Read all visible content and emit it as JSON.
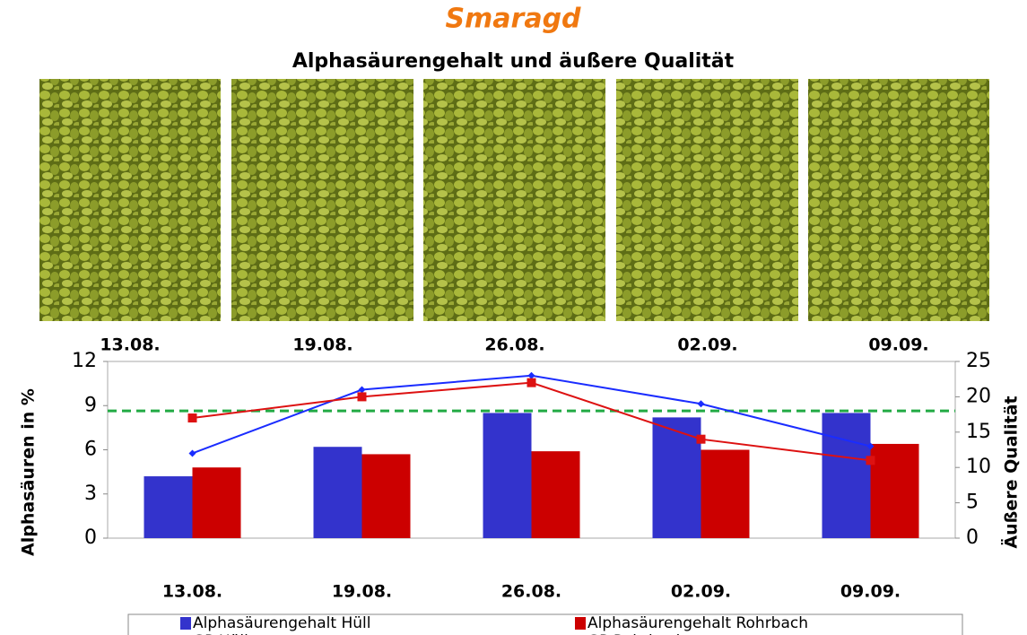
{
  "chart_data": {
    "type": "bar",
    "title": "Smaragd",
    "subtitle": "Alphasäurengehalt und äußere Qualität",
    "photo_labels": [
      "13.08.",
      "19.08.",
      "26.08.",
      "02.09.",
      "09.09."
    ],
    "categories": [
      "13.08.",
      "19.08.",
      "26.08.",
      "02.09.",
      "09.09."
    ],
    "y_label": "Alphasäuren in %",
    "y2_label": "Äußere Qualität",
    "ylim": [
      0,
      12
    ],
    "yticks": [
      0,
      3,
      6,
      9,
      12
    ],
    "y2lim": [
      0,
      25
    ],
    "y2ticks": [
      0,
      5,
      10,
      15,
      20,
      25
    ],
    "reference_line": {
      "value": 18,
      "axis": "y2",
      "color": "#22aa44"
    },
    "series": [
      {
        "name": "Alphasäurengehalt Hüll",
        "type": "bar",
        "color": "#3333cc",
        "values": [
          4.2,
          6.2,
          8.5,
          8.2,
          8.5
        ]
      },
      {
        "name": "Alphasäurengehalt Rohrbach",
        "type": "bar",
        "color": "#cc0000",
        "values": [
          4.8,
          5.7,
          5.9,
          6.0,
          6.4
        ]
      },
      {
        "name": "GP Hüll",
        "type": "line",
        "axis": "y2",
        "color": "#1a2cff",
        "values": [
          12,
          21,
          23,
          19,
          13
        ]
      },
      {
        "name": "GP Rohrbach",
        "type": "line",
        "axis": "y2",
        "color": "#dd1111",
        "values": [
          17,
          20,
          22,
          14,
          11
        ]
      }
    ]
  }
}
